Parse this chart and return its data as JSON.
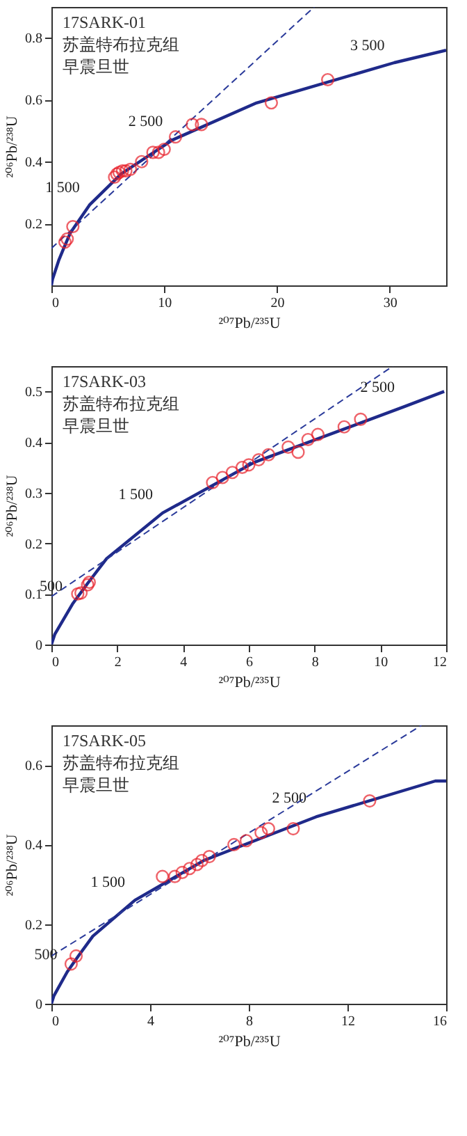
{
  "chart_data": [
    {
      "type": "line",
      "xlabel": "²⁰⁷Pb/²³⁵U",
      "ylabel": "²⁰⁶Pb/²³⁸U",
      "xlim": [
        0,
        35
      ],
      "xticks": [
        0,
        10,
        20,
        30
      ],
      "ylim": [
        0,
        0.9
      ],
      "yticks": [
        0.2,
        0.4,
        0.6,
        0.8
      ],
      "grid": false,
      "annotations": [
        "17SARK-01",
        "苏盖特布拉克组",
        "早震旦世",
        {
          "text": "1 500",
          "x": 3.38,
          "y": 0.262
        },
        {
          "text": "2 500",
          "x": 10.73,
          "y": 0.474
        },
        {
          "text": "3 500",
          "x": 30.41,
          "y": 0.721
        }
      ],
      "series": [
        {
          "color": "#1f2a8a",
          "x": [
            0,
            0.1,
            0.28,
            0.64,
            1.09,
            1.68,
            3.38,
            6.17,
            10.73,
            18.19,
            30.41,
            35
          ],
          "values": [
            0,
            0.02,
            0.04,
            0.08,
            0.12,
            0.17,
            0.26,
            0.36,
            0.47,
            0.59,
            0.72,
            0.76
          ]
        },
        {
          "color": "#2a3a9a",
          "line_style": "dashed",
          "x": [
            0,
            23.3
          ],
          "values": [
            0.12,
            0.9
          ]
        },
        {
          "type": "scatter",
          "color": "#e8202a",
          "marker": "circle",
          "x": [
            1.2,
            1.4,
            1.9,
            5.6,
            5.8,
            6.0,
            6.3,
            6.6,
            7.0,
            8.0,
            9.0,
            9.5,
            10.0,
            11.0,
            12.5,
            13.3,
            19.5,
            24.5
          ],
          "values": [
            0.14,
            0.15,
            0.19,
            0.35,
            0.36,
            0.365,
            0.37,
            0.37,
            0.375,
            0.4,
            0.43,
            0.43,
            0.44,
            0.48,
            0.52,
            0.52,
            0.59,
            0.665
          ]
        }
      ]
    },
    {
      "type": "line",
      "xlabel": "²⁰⁷Pb/²³⁵U",
      "ylabel": "²⁰⁶Pb/²³⁸U",
      "xlim": [
        0,
        12
      ],
      "xticks": [
        0,
        2,
        4,
        6,
        8,
        10,
        12
      ],
      "ylim": [
        0,
        0.55
      ],
      "yticks": [
        0,
        0.1,
        0.2,
        0.3,
        0.4,
        0.5
      ],
      "grid": false,
      "annotations": [
        "17SARK-03",
        "苏盖特布拉克组",
        "早震旦世",
        {
          "text": "500",
          "x": 0.636,
          "y": 0.081
        },
        {
          "text": "1 500",
          "x": 3.381,
          "y": 0.262
        },
        {
          "text": "2 500",
          "x": 10.73,
          "y": 0.474
        }
      ],
      "series": [
        {
          "color": "#1f2a8a",
          "x": [
            0,
            0.1,
            0.28,
            0.64,
            1.09,
            1.68,
            3.38,
            6.17,
            10.73,
            11.94
          ],
          "values": [
            0,
            0.02,
            0.04,
            0.08,
            0.12,
            0.17,
            0.26,
            0.36,
            0.47,
            0.5
          ]
        },
        {
          "color": "#2a3a9a",
          "line_style": "dashed",
          "x": [
            0,
            10.38
          ],
          "values": [
            0.095,
            0.55
          ]
        },
        {
          "type": "scatter",
          "color": "#e8202a",
          "marker": "circle",
          "x": [
            0.8,
            0.9,
            1.1,
            1.15,
            4.9,
            5.2,
            5.5,
            5.8,
            6.0,
            6.3,
            6.6,
            7.2,
            7.5,
            7.8,
            8.1,
            8.9,
            9.4
          ],
          "values": [
            0.1,
            0.102,
            0.118,
            0.123,
            0.32,
            0.33,
            0.34,
            0.35,
            0.355,
            0.365,
            0.375,
            0.39,
            0.38,
            0.405,
            0.415,
            0.43,
            0.445
          ]
        }
      ]
    },
    {
      "type": "line",
      "xlabel": "²⁰⁷Pb/²³⁵U",
      "ylabel": "²⁰⁶Pb/²³⁸U",
      "xlim": [
        0,
        16
      ],
      "xticks": [
        0,
        4,
        8,
        12,
        16
      ],
      "ylim": [
        0,
        0.7
      ],
      "yticks": [
        0,
        0.2,
        0.4,
        0.6
      ],
      "grid": false,
      "annotations": [
        "17SARK-05",
        "苏盖特布拉克组",
        "早震旦世",
        {
          "text": "500",
          "x": 0.636,
          "y": 0.081
        },
        {
          "text": "1 500",
          "x": 3.381,
          "y": 0.262
        },
        {
          "text": "2 500",
          "x": 10.73,
          "y": 0.474
        }
      ],
      "series": [
        {
          "color": "#1f2a8a",
          "x": [
            0,
            0.1,
            0.28,
            0.64,
            1.09,
            1.68,
            3.38,
            6.17,
            10.73,
            15.56,
            16
          ],
          "values": [
            0,
            0.02,
            0.04,
            0.08,
            0.12,
            0.17,
            0.26,
            0.36,
            0.47,
            0.56,
            0.56
          ]
        },
        {
          "color": "#2a3a9a",
          "line_style": "dashed",
          "x": [
            0,
            15.0
          ],
          "values": [
            0.12,
            0.7
          ]
        },
        {
          "type": "scatter",
          "color": "#e8202a",
          "marker": "circle",
          "x": [
            0.8,
            1.0,
            4.5,
            5.0,
            5.3,
            5.6,
            5.9,
            6.1,
            6.4,
            7.4,
            7.9,
            8.5,
            8.8,
            9.8,
            12.9
          ],
          "values": [
            0.1,
            0.12,
            0.32,
            0.32,
            0.33,
            0.34,
            0.35,
            0.36,
            0.37,
            0.4,
            0.41,
            0.43,
            0.44,
            0.44,
            0.51
          ]
        }
      ]
    }
  ]
}
